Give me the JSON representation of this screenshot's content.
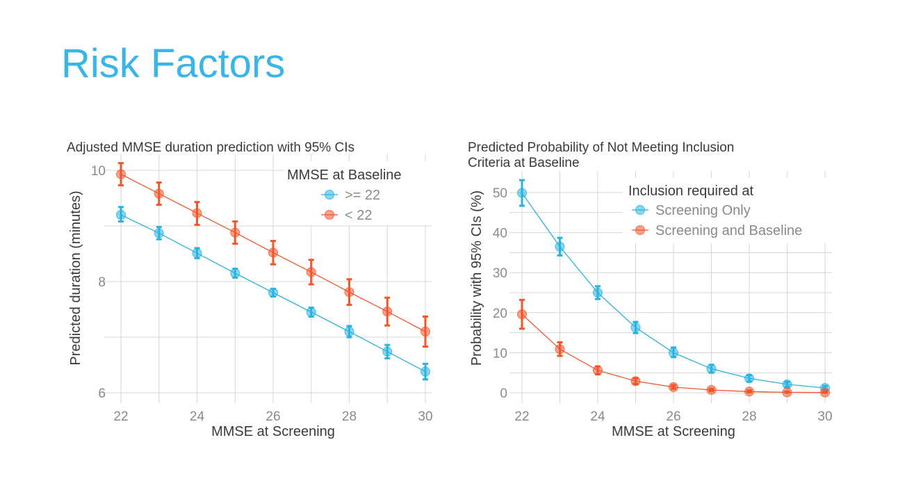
{
  "slide": {
    "title": "Risk Factors"
  },
  "colors": {
    "title": "#3ab5e6",
    "series_blue": "#29b3e0",
    "series_orange": "#f2562b",
    "grid": "#d6d6d6"
  },
  "chart_data": [
    {
      "type": "line",
      "title": "Adjusted MMSE duration prediction with 95% CIs",
      "xlabel": "MMSE at Screening",
      "ylabel": "Predicted duration (minutes)",
      "xlim": [
        22,
        30
      ],
      "ylim": [
        5.8,
        10.2
      ],
      "x_ticks": [
        22,
        24,
        26,
        28,
        30
      ],
      "y_ticks": [
        6,
        8,
        10
      ],
      "legend": {
        "title": "MMSE at Baseline",
        "position": "top-right"
      },
      "x": [
        22,
        23,
        24,
        25,
        26,
        27,
        28,
        29,
        30
      ],
      "series": [
        {
          "name": ">= 22",
          "color": "#29b3e0",
          "values": [
            9.2,
            8.87,
            8.51,
            8.15,
            7.8,
            7.45,
            7.1,
            6.74,
            6.38
          ],
          "lower": [
            9.08,
            8.76,
            8.42,
            8.07,
            7.73,
            7.37,
            7.0,
            6.62,
            6.24
          ],
          "upper": [
            9.34,
            8.98,
            8.6,
            8.23,
            7.87,
            7.53,
            7.2,
            6.86,
            6.52
          ]
        },
        {
          "name": "< 22",
          "color": "#f2562b",
          "values": [
            9.93,
            9.58,
            9.23,
            8.88,
            8.52,
            8.17,
            7.81,
            7.46,
            7.1
          ],
          "lower": [
            9.73,
            9.38,
            9.02,
            8.68,
            8.31,
            7.95,
            7.58,
            7.21,
            6.83
          ],
          "upper": [
            10.13,
            9.78,
            9.43,
            9.08,
            8.73,
            8.39,
            8.04,
            7.71,
            7.37
          ]
        }
      ]
    },
    {
      "type": "line",
      "title": "Predicted Probability of Not Meeting Inclusion Criteria at Baseline",
      "title_lines": [
        "Predicted Probability of Not Meeting Inclusion",
        "Criteria at Baseline"
      ],
      "xlabel": "MMSE at Screening",
      "ylabel": "Probability with 95% CIs (%)",
      "xlim": [
        22,
        30
      ],
      "ylim": [
        -2,
        54
      ],
      "x_ticks": [
        22,
        24,
        26,
        28,
        30
      ],
      "y_ticks": [
        0,
        10,
        20,
        30,
        40,
        50
      ],
      "legend": {
        "title": "Inclusion required at",
        "position": "top-right"
      },
      "x": [
        22,
        23,
        24,
        25,
        26,
        27,
        28,
        29,
        30
      ],
      "series": [
        {
          "name": "Screening Only",
          "color": "#29b3e0",
          "values": [
            49.9,
            36.5,
            25.0,
            16.3,
            10.0,
            6.0,
            3.6,
            2.1,
            1.2
          ],
          "lower": [
            46.7,
            34.3,
            23.4,
            14.9,
            8.9,
            5.0,
            2.8,
            1.5,
            0.7
          ],
          "upper": [
            53.1,
            38.7,
            26.6,
            17.7,
            11.3,
            7.0,
            4.4,
            2.7,
            1.7
          ]
        },
        {
          "name": "Screening and Baseline",
          "color": "#f2562b",
          "values": [
            19.6,
            10.9,
            5.6,
            2.9,
            1.4,
            0.7,
            0.3,
            0.1,
            0.05
          ],
          "lower": [
            16.0,
            9.2,
            4.6,
            2.2,
            1.0,
            0.4,
            0.1,
            0.0,
            0.0
          ],
          "upper": [
            23.2,
            12.6,
            6.6,
            3.6,
            1.9,
            1.0,
            0.6,
            0.3,
            0.2
          ]
        }
      ]
    }
  ]
}
